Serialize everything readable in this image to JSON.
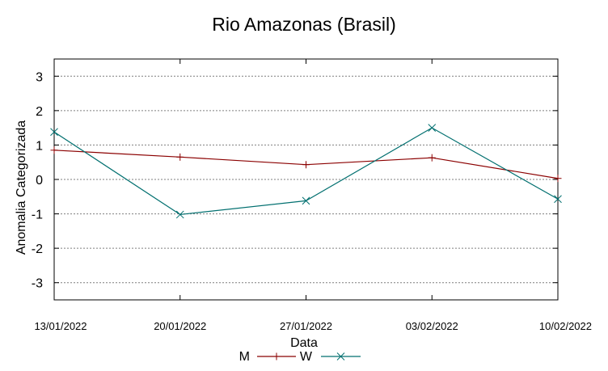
{
  "chart_data": {
    "type": "line",
    "title": "Rio Amazonas (Brasil)",
    "xlabel": "Data",
    "ylabel": "Anomalia Categorizada",
    "categories": [
      "13/01/2022",
      "20/01/2022",
      "27/01/2022",
      "03/02/2022",
      "10/02/2022"
    ],
    "ylim": [
      -3.5,
      3.5
    ],
    "yticks": [
      -3,
      -2,
      -1,
      0,
      1,
      2,
      3
    ],
    "grid": true,
    "legend_position": "bottom-center",
    "series": [
      {
        "name": "M",
        "color": "#8b0000",
        "marker": "plus",
        "values": [
          0.85,
          0.65,
          0.43,
          0.63,
          0.03
        ]
      },
      {
        "name": "W",
        "color": "#006f6f",
        "marker": "cross",
        "values": [
          1.38,
          -1.02,
          -0.62,
          1.5,
          -0.57
        ]
      }
    ]
  }
}
